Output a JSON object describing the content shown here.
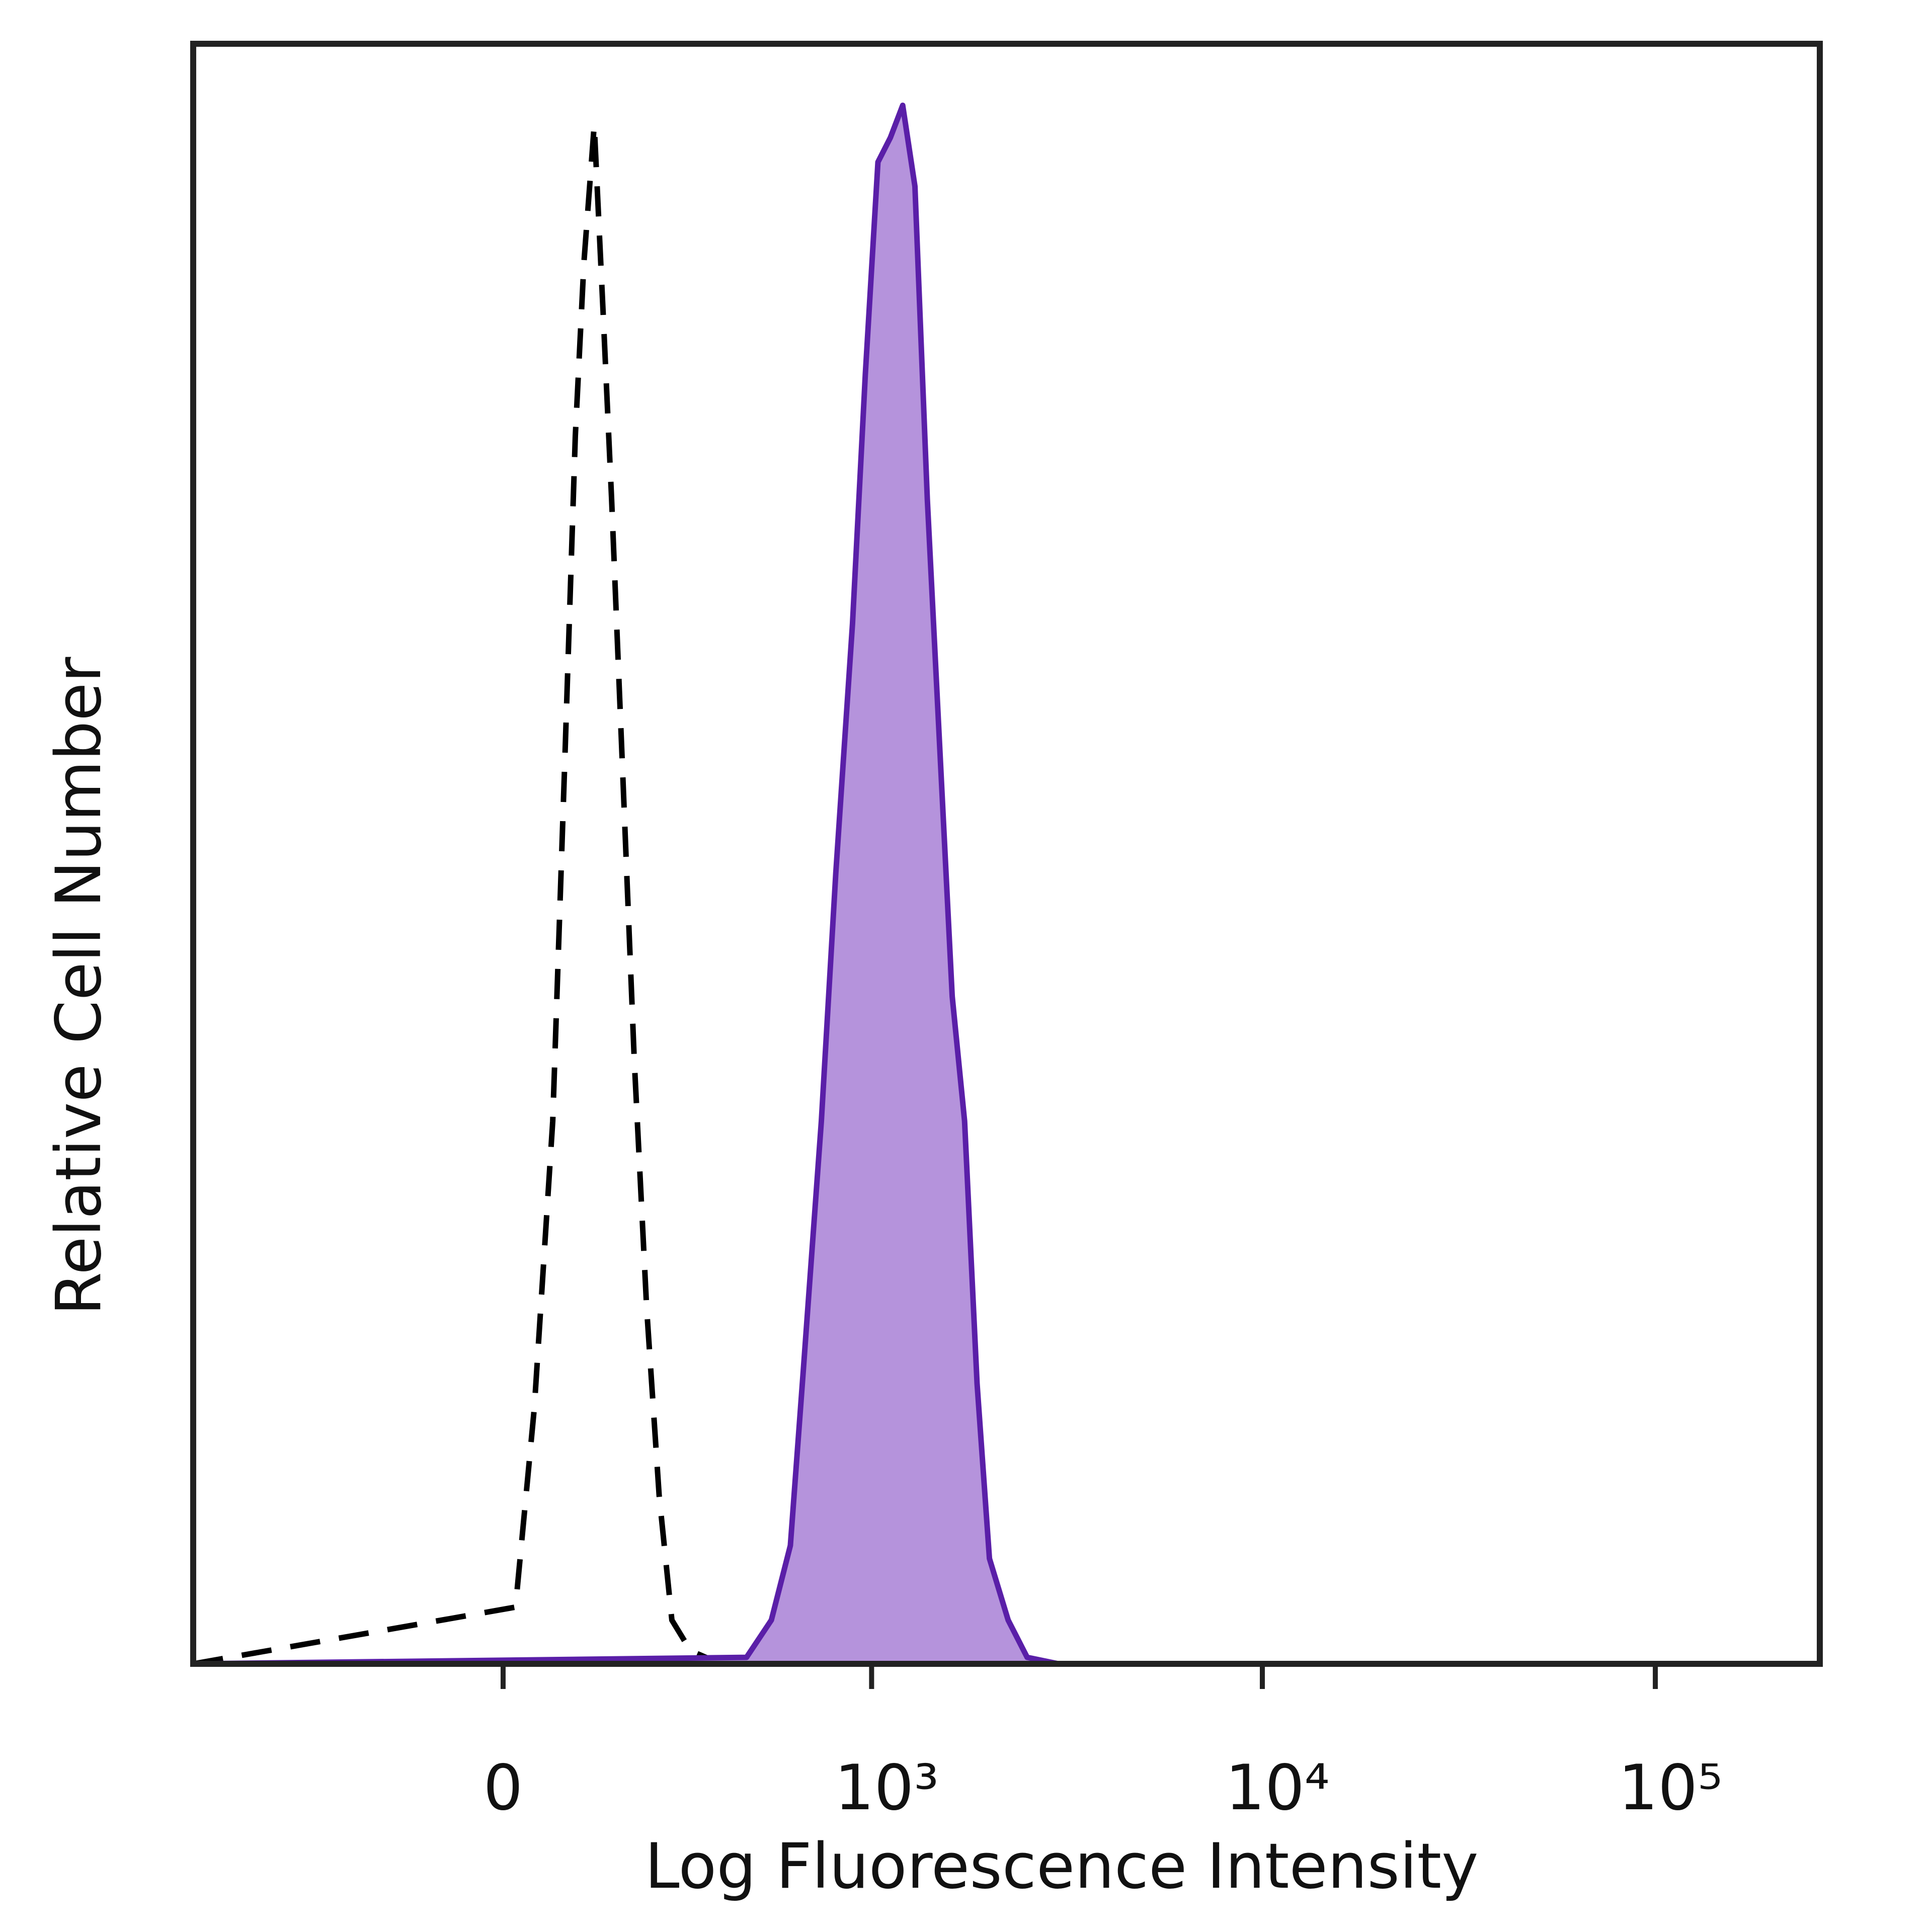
{
  "chart_data": {
    "type": "histogram-overlay",
    "x_label": "Log Fluorescence Intensity",
    "y_label": "Relative Cell Number",
    "xscale": "biexponential",
    "xlim": [
      -700,
      262144
    ],
    "ylim": [
      0,
      100
    ],
    "xticks": [
      0,
      {
        "value": 1000,
        "label": "10³"
      },
      {
        "value": 10000,
        "label": "10⁴"
      },
      {
        "value": 100000,
        "label": "10⁵"
      }
    ],
    "series": [
      {
        "color": "#000000",
        "dash": true,
        "fill": null,
        "x": [
          -700,
          17,
          43,
          69,
          87,
          102,
          115,
          131,
          145,
          159,
          176,
          198,
          221,
          245,
          271,
          312,
          387,
          262144
        ],
        "values": [
          0,
          3.5,
          15.8,
          33.5,
          56.5,
          75.8,
          86.5,
          95,
          83.5,
          71.9,
          56.5,
          37.3,
          21.9,
          10.4,
          2.7,
          0.8,
          0,
          0
        ]
      },
      {
        "color": "#5a1fa8",
        "dash": false,
        "fill": "#b593dc",
        "x": [
          -700,
          459,
          539,
          608,
          659,
          737,
          805,
          891,
          963,
          1039,
          1119,
          1205,
          1296,
          1395,
          1502,
          1617,
          1740,
          1873,
          2015,
          2250,
          2516,
          3027,
          262144
        ],
        "values": [
          0,
          0.4,
          2.7,
          7.3,
          18.1,
          33.5,
          48.8,
          64.2,
          79.6,
          92.7,
          94.2,
          96.2,
          91.2,
          71.9,
          56.5,
          41.2,
          33.5,
          17.3,
          6.5,
          2.7,
          0.4,
          0,
          0
        ]
      }
    ]
  }
}
